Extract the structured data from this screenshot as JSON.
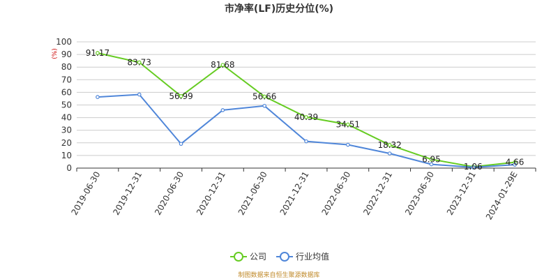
{
  "chart_data": {
    "type": "line",
    "title": "市净率(LF)历史分位(%)",
    "unit": "(%)",
    "x": [
      "2019-06-30",
      "2019-12-31",
      "2020-06-30",
      "2020-12-31",
      "2021-06-30",
      "2021-12-31",
      "2022-06-30",
      "2022-12-31",
      "2023-06-30",
      "2023-12-31",
      "2024-01-29E"
    ],
    "ylim": [
      0,
      100
    ],
    "yticks": [
      0,
      10,
      20,
      30,
      40,
      50,
      60,
      70,
      80,
      90,
      100
    ],
    "grid": true,
    "legend_position": "bottom",
    "series": [
      {
        "name": "公司",
        "color": "#66cc22",
        "values": [
          91.17,
          83.73,
          56.99,
          81.68,
          56.66,
          40.39,
          34.51,
          18.32,
          6.95,
          1.06,
          4.66
        ],
        "labels": [
          "91.17",
          "83.73",
          "56.99",
          "81.68",
          "56.66",
          "40.39",
          "34.51",
          "18.32",
          "6.95",
          "1.06",
          "4.66"
        ]
      },
      {
        "name": "行业均值",
        "color": "#4f86d9",
        "values": [
          56.3,
          58.3,
          19.2,
          45.9,
          49.3,
          21.2,
          18.5,
          11.6,
          3.0,
          0.6,
          2.7
        ]
      }
    ],
    "source": "制图数据来自恒生聚源数据库"
  }
}
